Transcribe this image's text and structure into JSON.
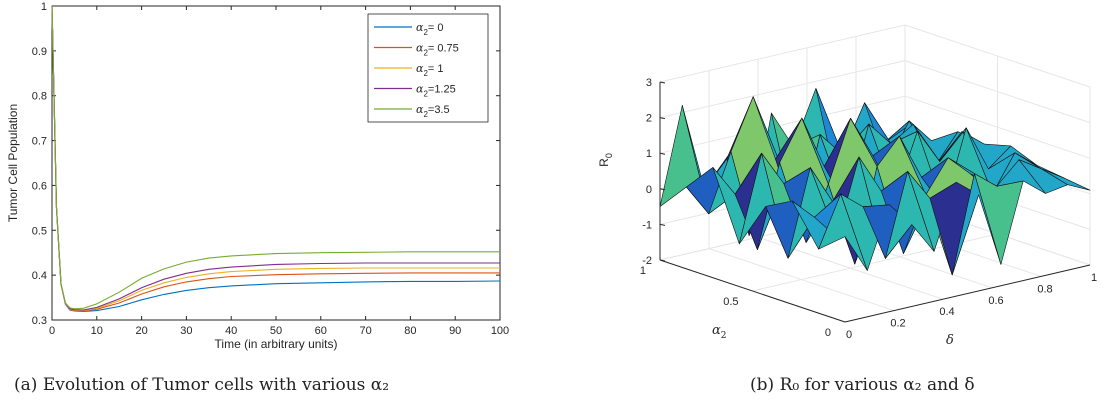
{
  "figure_a": {
    "caption_label": "(a)",
    "caption_text": "Evolution of Tumor cells with various α₂",
    "ylabel": "Tumor Cell Population",
    "xlabel": "Time (in arbitrary units)",
    "x_ticks": [
      "0",
      "10",
      "20",
      "30",
      "40",
      "50",
      "60",
      "70",
      "80",
      "90",
      "100"
    ],
    "y_ticks": [
      "0.3",
      "0.4",
      "0.5",
      "0.6",
      "0.7",
      "0.8",
      "0.9",
      "1"
    ],
    "legend": [
      {
        "sym": "α",
        "sub": "2",
        "val": "= 0"
      },
      {
        "sym": "α",
        "sub": "2",
        "val": "= 0.75"
      },
      {
        "sym": "α",
        "sub": "2",
        "val": "= 1"
      },
      {
        "sym": "α",
        "sub": "2",
        "val": "=1.25"
      },
      {
        "sym": "α",
        "sub": "2",
        "val": "=3.5"
      }
    ]
  },
  "figure_b": {
    "caption_label": "(b)",
    "caption_text": "R₀ for various α₂ and δ",
    "zlabel": "R",
    "zlabel_sub": "0",
    "alpha_label": "α",
    "alpha_sub": "2",
    "delta_label": "δ",
    "z_ticks": [
      "3",
      "2",
      "1",
      "0",
      "-1",
      "-2"
    ],
    "alpha_ticks": [
      "1",
      "0.5",
      "0"
    ],
    "delta_ticks": [
      "0",
      "0.2",
      "0.4",
      "0.6",
      "0.8",
      "1"
    ]
  },
  "colors": {
    "series": [
      "#0072BD",
      "#D95319",
      "#EDB120",
      "#7E2F8E",
      "#77AC30"
    ],
    "axis": "#262626",
    "grid": "#e6e6e6",
    "surface_face": "#29a4c8",
    "surface_edge": "#111111"
  },
  "chart_data": [
    {
      "type": "line",
      "title": "",
      "xlabel": "Time (in arbitrary units)",
      "ylabel": "Tumor Cell Population",
      "xlim": [
        0,
        100
      ],
      "ylim": [
        0.3,
        1
      ],
      "grid": false,
      "legend_position": "top-right",
      "x": [
        0,
        1,
        2,
        3,
        4,
        5,
        7,
        10,
        15,
        20,
        25,
        30,
        35,
        40,
        50,
        60,
        70,
        80,
        90,
        100
      ],
      "series": [
        {
          "name": "α2= 0",
          "values": [
            1.0,
            0.55,
            0.38,
            0.335,
            0.322,
            0.32,
            0.319,
            0.321,
            0.33,
            0.345,
            0.357,
            0.366,
            0.372,
            0.376,
            0.381,
            0.383,
            0.385,
            0.386,
            0.386,
            0.387
          ]
        },
        {
          "name": "α2= 0.75",
          "values": [
            1.0,
            0.55,
            0.38,
            0.336,
            0.323,
            0.321,
            0.32,
            0.324,
            0.338,
            0.358,
            0.374,
            0.385,
            0.392,
            0.397,
            0.401,
            0.403,
            0.404,
            0.405,
            0.405,
            0.405
          ]
        },
        {
          "name": "α2= 1",
          "values": [
            1.0,
            0.55,
            0.38,
            0.336,
            0.324,
            0.322,
            0.321,
            0.326,
            0.343,
            0.366,
            0.383,
            0.395,
            0.403,
            0.408,
            0.413,
            0.415,
            0.416,
            0.416,
            0.416,
            0.416
          ]
        },
        {
          "name": "α2=1.25",
          "values": [
            1.0,
            0.55,
            0.38,
            0.337,
            0.325,
            0.323,
            0.322,
            0.328,
            0.347,
            0.372,
            0.391,
            0.404,
            0.413,
            0.418,
            0.424,
            0.426,
            0.427,
            0.427,
            0.427,
            0.427
          ]
        },
        {
          "name": "α2=3.5",
          "values": [
            1.0,
            0.55,
            0.38,
            0.338,
            0.327,
            0.325,
            0.326,
            0.336,
            0.362,
            0.393,
            0.414,
            0.429,
            0.438,
            0.443,
            0.448,
            0.45,
            0.451,
            0.452,
            0.452,
            0.452
          ]
        }
      ]
    },
    {
      "type": "surface",
      "title": "",
      "xlabel": "δ",
      "ylabel": "α2",
      "zlabel": "R0",
      "zlim": [
        -2,
        3
      ],
      "grid": true,
      "delta_range": [
        0,
        1
      ],
      "alpha_range": [
        0,
        1
      ],
      "z_grid": [
        [
          -0.5,
          2.2,
          -0.3,
          0.4,
          -1.9,
          1.4,
          0.3,
          1.8,
          -1.2,
          0.6,
          -0.2,
          0.1
        ],
        [
          0.3,
          -0.6,
          1.0,
          2.4,
          0.5,
          -1.6,
          0.9,
          0.2,
          1.5,
          -0.4,
          0.7,
          0.0
        ],
        [
          1.1,
          0.2,
          -1.5,
          0.8,
          1.9,
          0.4,
          -0.9,
          1.3,
          0.6,
          1.0,
          -0.3,
          0.5
        ],
        [
          -0.8,
          1.6,
          0.6,
          -1.2,
          0.3,
          2.0,
          0.8,
          -0.5,
          1.2,
          0.2,
          0.9,
          0.4
        ],
        [
          0.5,
          -1.1,
          1.3,
          0.2,
          -1.7,
          0.9,
          1.6,
          0.3,
          -0.7,
          1.4,
          0.1,
          0.6
        ],
        [
          0.9,
          0.3,
          -0.4,
          1.7,
          0.6,
          -1.3,
          0.2,
          1.1,
          0.5,
          -0.2,
          0.8,
          0.3
        ],
        [
          -0.2,
          1.2,
          0.7,
          -0.9,
          1.4,
          0.5,
          -1.8,
          0.9,
          0.4,
          1.0,
          0.6,
          0.2
        ],
        [
          0.4,
          -0.7,
          1.0,
          0.3,
          -0.6,
          1.2,
          0.7,
          -1.4,
          0.8,
          0.3,
          0.4,
          0.1
        ]
      ]
    }
  ]
}
